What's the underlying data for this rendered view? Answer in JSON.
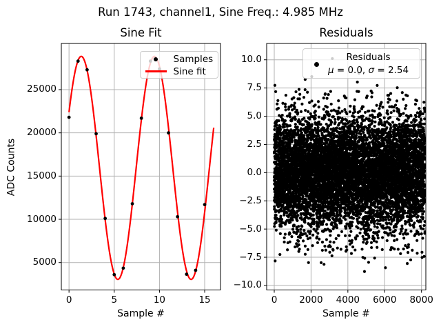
{
  "figure": {
    "title": "Run 1743, channel1, Sine Freq.: 4.985 MHz",
    "background": "#ffffff"
  },
  "colors": {
    "fit_line": "#ff0000",
    "marker": "#000000",
    "grid": "#b0b0b0",
    "frame": "#000000",
    "legend_edge": "#cccccc",
    "legend_face": "rgba(255,255,255,0.8)"
  },
  "legend_stats": {
    "mu_symbol": "μ",
    "mu_rest": " = 0.0, ",
    "sigma_symbol": "σ",
    "sigma_rest": " = 2.54"
  },
  "chart_data": [
    {
      "type": "line+scatter",
      "title": "Sine Fit",
      "xlabel": "Sample #",
      "ylabel": "ADC Counts",
      "legend": [
        "Samples",
        "Sine fit"
      ],
      "legend_position": "upper right",
      "grid": true,
      "xlim": [
        -0.85,
        16.75
      ],
      "ylim": [
        1825,
        30345
      ],
      "xticks": [
        0,
        5,
        10,
        15
      ],
      "xtick_labels": [
        "0",
        "5",
        "10",
        "15"
      ],
      "yticks": [
        5000,
        10000,
        15000,
        20000,
        25000
      ],
      "ytick_labels": [
        "5000",
        "10000",
        "15000",
        "20000",
        "25000"
      ],
      "samples": {
        "x": [
          0,
          1,
          2,
          3,
          4,
          5,
          6,
          7,
          8,
          9,
          10,
          11,
          12,
          13,
          14,
          15
        ],
        "y": [
          21800,
          28300,
          27300,
          19900,
          10100,
          3600,
          4350,
          11800,
          21700,
          28300,
          27400,
          20000,
          10300,
          3650,
          4100,
          11700
        ]
      },
      "sine_fit": {
        "offset": 15950,
        "amplitude": 12900,
        "period_samples": 8.1,
        "peak_x": 1.35,
        "x_start": 0,
        "x_end": 16
      }
    },
    {
      "type": "scatter",
      "title": "Residuals",
      "xlabel": "Sample #",
      "legend": [
        "Residuals",
        "μ = 0.0, σ = 2.54"
      ],
      "legend_position": "upper center",
      "grid": true,
      "xlim": [
        -412,
        8237
      ],
      "ylim": [
        -10.4,
        11.45
      ],
      "xticks": [
        0,
        2000,
        4000,
        6000,
        8000
      ],
      "xtick_labels": [
        "0",
        "2000",
        "4000",
        "6000",
        "8000"
      ],
      "yticks": [
        10,
        7.5,
        5,
        2.5,
        0,
        -2.5,
        -5,
        -7.5,
        -10
      ],
      "ytick_labels": [
        "10.0",
        "7.5",
        "5.0",
        "2.5",
        "0.0",
        "−2.5",
        "−5.0",
        "−7.5",
        "−10.0"
      ],
      "n_points": 8192,
      "mu": 0.0,
      "sigma": 2.54,
      "observed_extremes": [
        -9.5,
        10.3
      ],
      "seed": 1743
    }
  ]
}
